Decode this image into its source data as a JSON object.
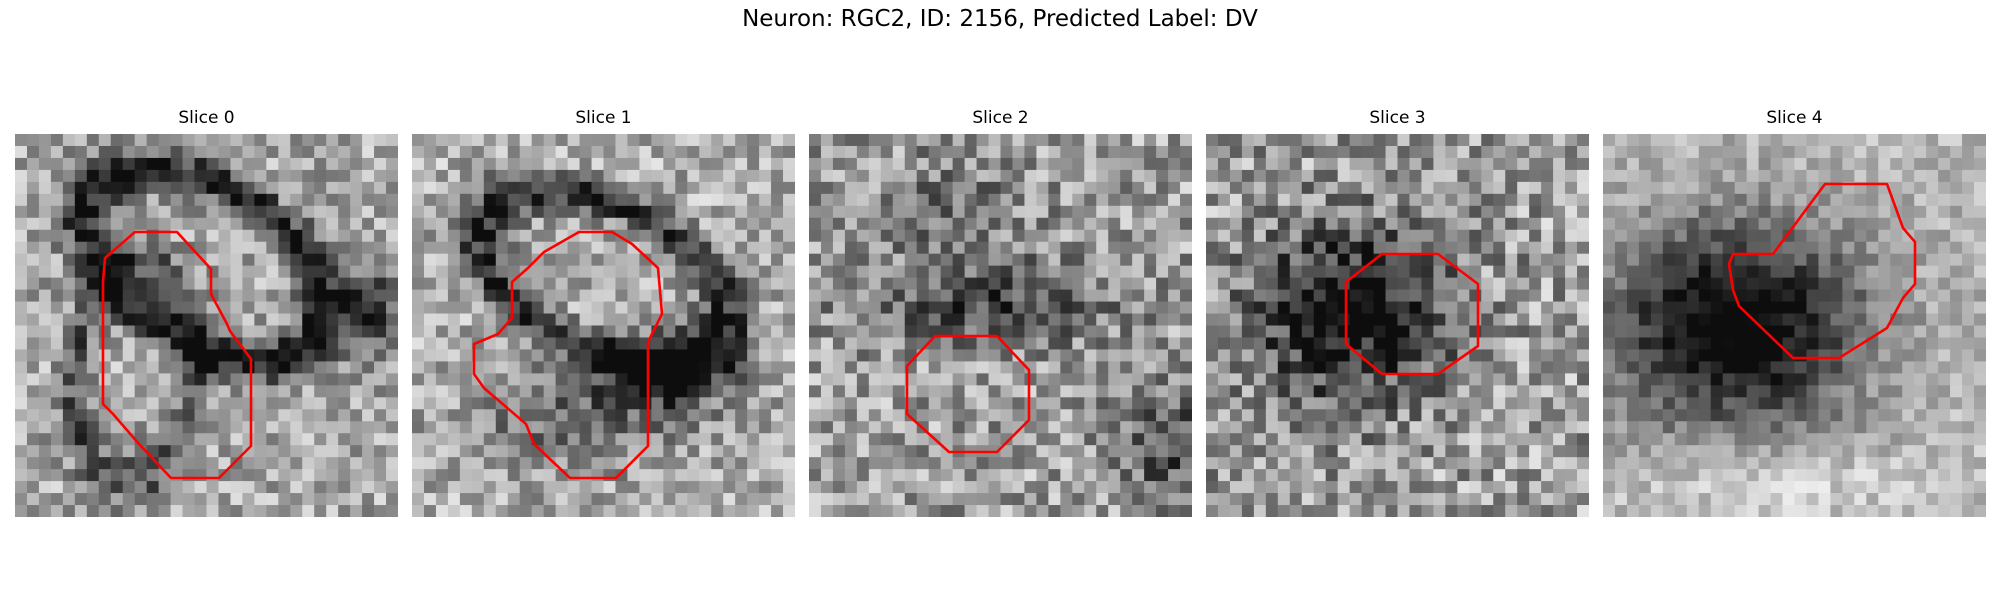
{
  "figure": {
    "title": "Neuron: RGC2, ID: 2156, Predicted Label: DV"
  },
  "panels": [
    {
      "title": "Slice 0",
      "roi_color": "#ff0000"
    },
    {
      "title": "Slice 1",
      "roi_color": "#ff0000"
    },
    {
      "title": "Slice 2",
      "roi_color": "#ff0000"
    },
    {
      "title": "Slice 3",
      "roi_color": "#ff0000"
    },
    {
      "title": "Slice 4",
      "roi_color": "#ff0000"
    }
  ],
  "colormap": "grayscale"
}
